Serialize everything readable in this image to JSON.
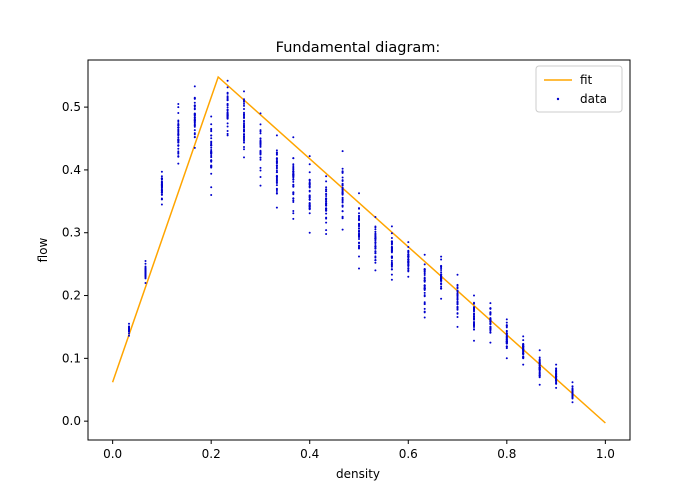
{
  "chart_data": {
    "type": "scatter",
    "title": "Fundamental diagram:",
    "xlabel": "density",
    "ylabel": "flow",
    "xlim": [
      -0.05,
      1.05
    ],
    "ylim": [
      -0.03,
      0.575
    ],
    "xticks": [
      0.0,
      0.2,
      0.4,
      0.6,
      0.8,
      1.0
    ],
    "xtick_labels": [
      "0.0",
      "0.2",
      "0.4",
      "0.6",
      "0.8",
      "1.0"
    ],
    "yticks": [
      0.0,
      0.1,
      0.2,
      0.3,
      0.4,
      0.5
    ],
    "ytick_labels": [
      "0.0",
      "0.1",
      "0.2",
      "0.3",
      "0.4",
      "0.5"
    ],
    "grid": false,
    "legend": {
      "placement": "top-right",
      "entries": [
        "fit",
        "data"
      ]
    },
    "colors": {
      "fit": "#ffa500",
      "data": "#0000cd"
    },
    "series": [
      {
        "name": "fit",
        "kind": "line",
        "x": [
          0.0,
          0.2143,
          1.0
        ],
        "y": [
          0.062,
          0.548,
          -0.003
        ]
      },
      {
        "name": "data",
        "kind": "scatter",
        "groups": [
          {
            "x": 0.0333,
            "min": 0.136,
            "max": 0.155
          },
          {
            "x": 0.0667,
            "min": 0.22,
            "max": 0.255
          },
          {
            "x": 0.1,
            "min": 0.345,
            "max": 0.397
          },
          {
            "x": 0.1333,
            "min": 0.41,
            "max": 0.505
          },
          {
            "x": 0.1667,
            "min": 0.435,
            "max": 0.533
          },
          {
            "x": 0.2,
            "min": 0.36,
            "max": 0.485
          },
          {
            "x": 0.2333,
            "min": 0.455,
            "max": 0.542
          },
          {
            "x": 0.2667,
            "min": 0.42,
            "max": 0.525
          },
          {
            "x": 0.3,
            "min": 0.375,
            "max": 0.49
          },
          {
            "x": 0.3333,
            "min": 0.34,
            "max": 0.455
          },
          {
            "x": 0.3667,
            "min": 0.322,
            "max": 0.452
          },
          {
            "x": 0.4,
            "min": 0.3,
            "max": 0.422
          },
          {
            "x": 0.4333,
            "min": 0.298,
            "max": 0.39
          },
          {
            "x": 0.4667,
            "min": 0.305,
            "max": 0.43
          },
          {
            "x": 0.5,
            "min": 0.243,
            "max": 0.363
          },
          {
            "x": 0.5333,
            "min": 0.24,
            "max": 0.325
          },
          {
            "x": 0.5667,
            "min": 0.225,
            "max": 0.31
          },
          {
            "x": 0.6,
            "min": 0.23,
            "max": 0.285
          },
          {
            "x": 0.6333,
            "min": 0.165,
            "max": 0.265
          },
          {
            "x": 0.6667,
            "min": 0.195,
            "max": 0.262
          },
          {
            "x": 0.7,
            "min": 0.15,
            "max": 0.233
          },
          {
            "x": 0.7333,
            "min": 0.128,
            "max": 0.2
          },
          {
            "x": 0.7667,
            "min": 0.125,
            "max": 0.188
          },
          {
            "x": 0.8,
            "min": 0.1,
            "max": 0.162
          },
          {
            "x": 0.8333,
            "min": 0.09,
            "max": 0.135
          },
          {
            "x": 0.8667,
            "min": 0.058,
            "max": 0.113
          },
          {
            "x": 0.9,
            "min": 0.053,
            "max": 0.09
          },
          {
            "x": 0.9333,
            "min": 0.03,
            "max": 0.062
          }
        ]
      }
    ]
  }
}
